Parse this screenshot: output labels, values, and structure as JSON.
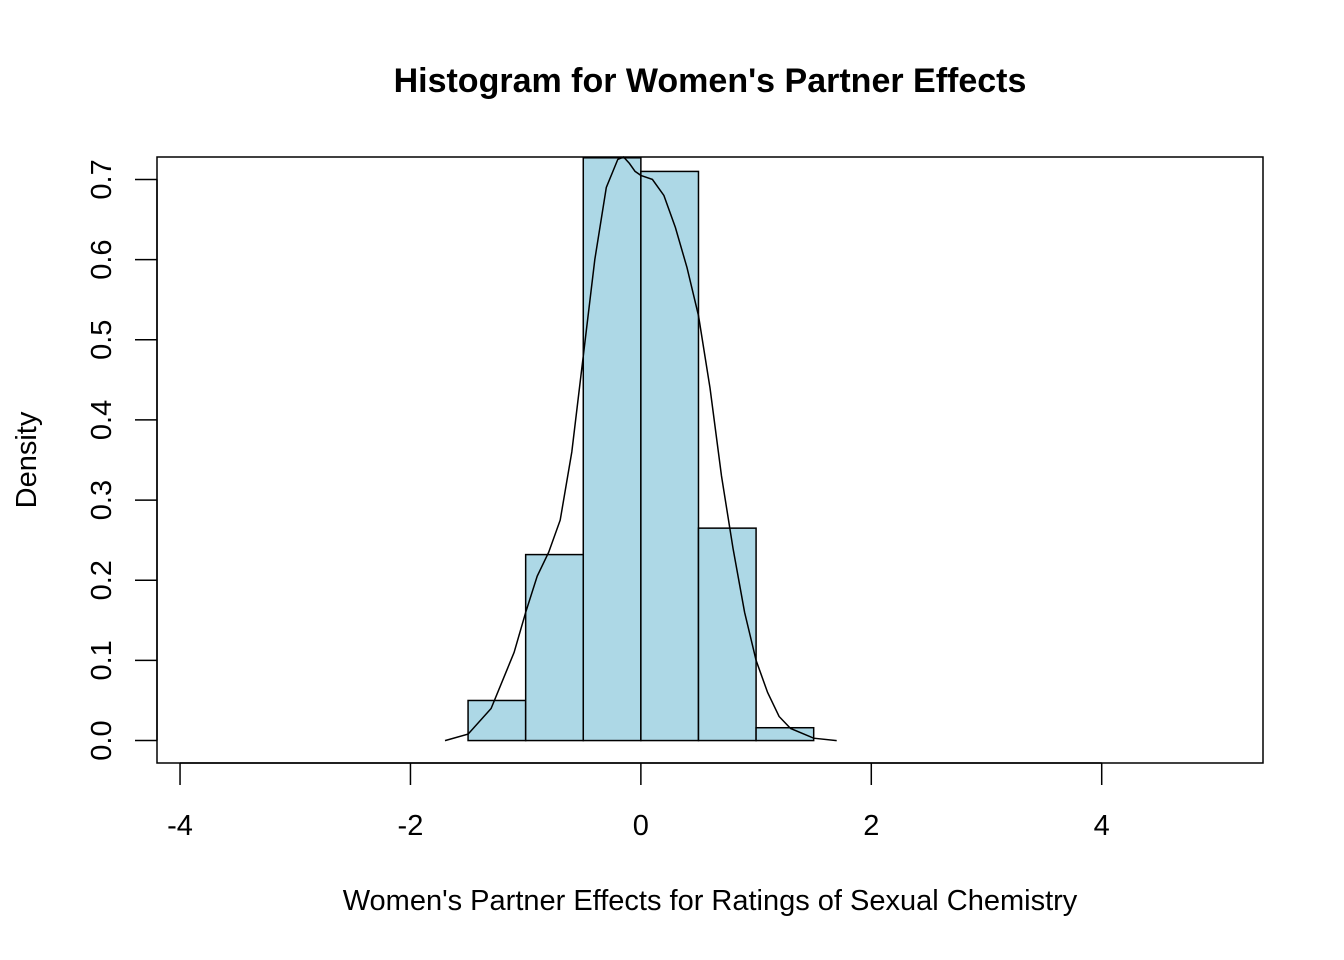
{
  "chart_data": {
    "type": "histogram",
    "title": "Histogram for Women's Partner Effects",
    "xlabel": "Women's Partner Effects for Ratings of Sexual Chemistry",
    "ylabel": "Density",
    "xlim": [
      -4.2,
      5.4
    ],
    "ylim": [
      -0.028,
      0.728
    ],
    "x_ticks": [
      -4,
      -2,
      0,
      2,
      4
    ],
    "x_tick_labels": [
      "-4",
      "-2",
      "0",
      "2",
      "4"
    ],
    "y_ticks": [
      0.0,
      0.1,
      0.2,
      0.3,
      0.4,
      0.5,
      0.6,
      0.7
    ],
    "y_tick_labels": [
      "0.0",
      "0.1",
      "0.2",
      "0.3",
      "0.4",
      "0.5",
      "0.6",
      "0.7"
    ],
    "bar_color": "#add8e6",
    "bins": [
      {
        "x0": -1.5,
        "x1": -1.0,
        "density": 0.05
      },
      {
        "x0": -1.0,
        "x1": -0.5,
        "density": 0.232
      },
      {
        "x0": -0.5,
        "x1": 0.0,
        "density": 0.727
      },
      {
        "x0": 0.0,
        "x1": 0.5,
        "density": 0.71
      },
      {
        "x0": 0.5,
        "x1": 1.0,
        "density": 0.265
      },
      {
        "x0": 1.0,
        "x1": 1.5,
        "density": 0.016
      }
    ],
    "density_curve": [
      [
        -1.7,
        0.0
      ],
      [
        -1.5,
        0.008
      ],
      [
        -1.3,
        0.04
      ],
      [
        -1.1,
        0.11
      ],
      [
        -1.0,
        0.16
      ],
      [
        -0.9,
        0.205
      ],
      [
        -0.8,
        0.235
      ],
      [
        -0.7,
        0.275
      ],
      [
        -0.6,
        0.36
      ],
      [
        -0.5,
        0.48
      ],
      [
        -0.4,
        0.6
      ],
      [
        -0.3,
        0.69
      ],
      [
        -0.2,
        0.725
      ],
      [
        -0.15,
        0.728
      ],
      [
        -0.1,
        0.72
      ],
      [
        -0.05,
        0.71
      ],
      [
        0.0,
        0.705
      ],
      [
        0.1,
        0.7
      ],
      [
        0.2,
        0.68
      ],
      [
        0.3,
        0.64
      ],
      [
        0.4,
        0.59
      ],
      [
        0.5,
        0.53
      ],
      [
        0.6,
        0.44
      ],
      [
        0.7,
        0.33
      ],
      [
        0.8,
        0.24
      ],
      [
        0.9,
        0.16
      ],
      [
        1.0,
        0.1
      ],
      [
        1.1,
        0.06
      ],
      [
        1.2,
        0.03
      ],
      [
        1.3,
        0.015
      ],
      [
        1.5,
        0.003
      ],
      [
        1.7,
        0.0
      ]
    ],
    "grid": false,
    "legend": null
  }
}
